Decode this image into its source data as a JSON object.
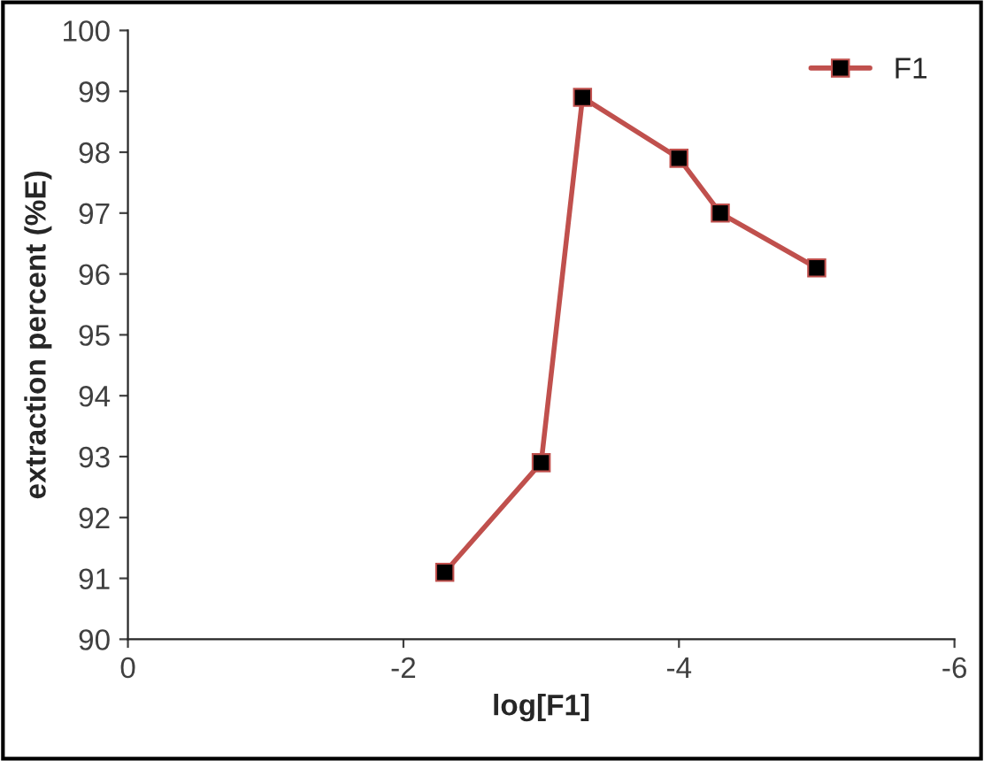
{
  "chart_data": {
    "type": "line",
    "xlabel": "log[F1]",
    "ylabel": "extraction percent (%E)",
    "x": [
      -2.3,
      -3.0,
      -3.3,
      -4.0,
      -4.3,
      -5.0
    ],
    "series": [
      {
        "name": "F1",
        "color": "#c0504d",
        "values": [
          91.1,
          92.9,
          98.9,
          97.9,
          97.0,
          96.1
        ]
      }
    ],
    "xlim": [
      0,
      -6
    ],
    "xticks": [
      0,
      -2,
      -4,
      -6
    ],
    "ylim": [
      90,
      100
    ],
    "yticks": [
      90,
      91,
      92,
      93,
      94,
      95,
      96,
      97,
      98,
      99,
      100
    ],
    "marker": "square",
    "grid": false,
    "legend": "top right"
  }
}
